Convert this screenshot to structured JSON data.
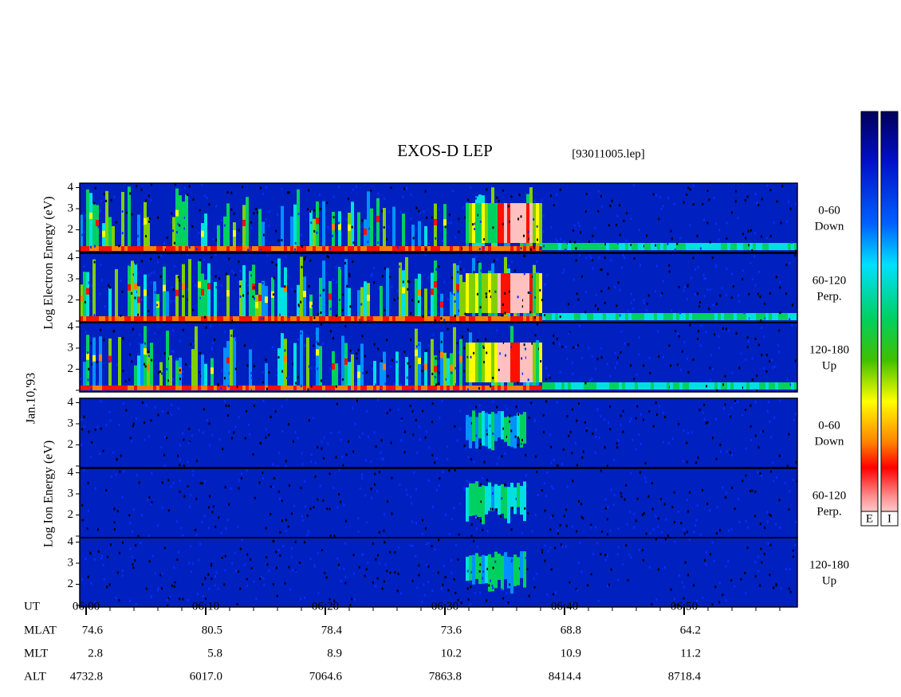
{
  "header": {
    "title": "EXOS-D LEP",
    "file": "[93011005.lep]"
  },
  "left_labels": {
    "electron": "Log  Electron  Energy (eV)",
    "date": "Jan.10,'93",
    "ion": "Log  Ion  Energy (eV)"
  },
  "energy_ticks": [
    2,
    3,
    4
  ],
  "panels": [
    {
      "angle": "0-60",
      "direction": "Down"
    },
    {
      "angle": "60-120",
      "direction": "Perp."
    },
    {
      "angle": "120-180",
      "direction": "Up"
    },
    {
      "angle": "0-60",
      "direction": "Down"
    },
    {
      "angle": "60-120",
      "direction": "Perp."
    },
    {
      "angle": "120-180",
      "direction": "Up"
    }
  ],
  "colorbars": [
    "E",
    "I"
  ],
  "orbit": {
    "rows": [
      {
        "label": "UT",
        "values": [
          "06:00",
          "06:10",
          "06:20",
          "06:30",
          "06:40",
          "06:50"
        ]
      },
      {
        "label": "MLAT",
        "values": [
          "74.6",
          "80.5",
          "78.4",
          "73.6",
          "68.8",
          "64.2"
        ]
      },
      {
        "label": "MLT",
        "values": [
          "2.8",
          "5.8",
          "8.9",
          "10.2",
          "10.9",
          "11.2"
        ]
      },
      {
        "label": "ALT",
        "values": [
          "4732.8",
          "6017.0",
          "7064.6",
          "7863.8",
          "8414.4",
          "8718.4"
        ]
      }
    ]
  }
}
